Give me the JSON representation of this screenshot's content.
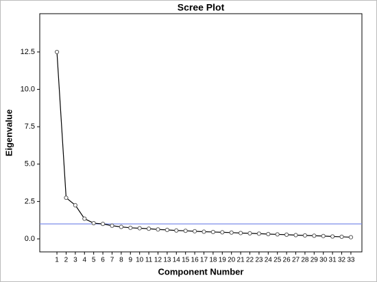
{
  "chart_data": {
    "type": "line",
    "title": "Scree Plot",
    "x_label": "Component Number",
    "y_label": "Eigenvalue",
    "x": [
      1,
      2,
      3,
      4,
      5,
      6,
      7,
      8,
      9,
      10,
      11,
      12,
      13,
      14,
      15,
      16,
      17,
      18,
      19,
      20,
      21,
      22,
      23,
      24,
      25,
      26,
      27,
      28,
      29,
      30,
      31,
      32,
      33
    ],
    "series": [
      {
        "name": "Eigenvalue",
        "color": "#000000",
        "values": [
          12.5,
          2.75,
          2.25,
          1.35,
          1.05,
          1.0,
          0.88,
          0.8,
          0.74,
          0.71,
          0.68,
          0.63,
          0.6,
          0.56,
          0.54,
          0.51,
          0.48,
          0.46,
          0.44,
          0.42,
          0.39,
          0.37,
          0.35,
          0.32,
          0.3,
          0.28,
          0.25,
          0.23,
          0.21,
          0.19,
          0.16,
          0.14,
          0.11
        ]
      }
    ],
    "reference_line": 1,
    "reference_color": "#7b8ce8",
    "xlim": [
      -0.87,
      34.2
    ],
    "xticks": [
      1,
      2,
      3,
      4,
      5,
      6,
      7,
      8,
      9,
      10,
      11,
      12,
      13,
      14,
      15,
      16,
      17,
      18,
      19,
      20,
      21,
      22,
      23,
      24,
      25,
      26,
      27,
      28,
      29,
      30,
      31,
      32,
      33
    ],
    "ylim": [
      -0.87,
      15.06
    ],
    "yticks": [
      {
        "value": 0,
        "label": "0.0"
      },
      2.5,
      {
        "value": 5,
        "label": "5.0"
      },
      7.5,
      {
        "value": 10,
        "label": "10.0"
      },
      12.5
    ]
  }
}
